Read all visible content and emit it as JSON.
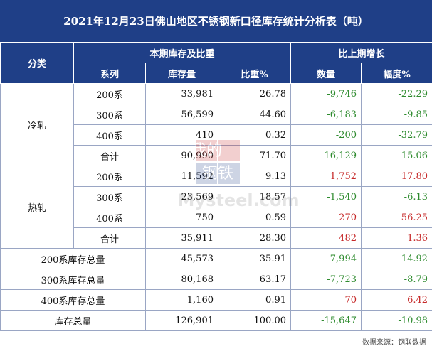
{
  "title": "2021年12月23日佛山地区不锈钢新口径库存统计分析表（吨）",
  "header": {
    "category": "分类",
    "current_group": "本期库存及比重",
    "change_group": "比上期增长",
    "series": "系列",
    "inventory": "库存量",
    "ratio": "比重%",
    "quantity": "数量",
    "amplitude": "幅度%"
  },
  "groups": {
    "cold": "冷轧",
    "hot": "热轧"
  },
  "rows": [
    {
      "series": "200系",
      "inventory": "33,981",
      "ratio": "26.78",
      "quantity": "-9,746",
      "amplitude": "-22.29"
    },
    {
      "series": "300系",
      "inventory": "56,599",
      "ratio": "44.60",
      "quantity": "-6,183",
      "amplitude": "-9.85"
    },
    {
      "series": "400系",
      "inventory": "410",
      "ratio": "0.32",
      "quantity": "-200",
      "amplitude": "-32.79"
    },
    {
      "series": "合计",
      "inventory": "90,990",
      "ratio": "71.70",
      "quantity": "-16,129",
      "amplitude": "-15.06"
    },
    {
      "series": "200系",
      "inventory": "11,592",
      "ratio": "9.13",
      "quantity": "1,752",
      "amplitude": "17.80"
    },
    {
      "series": "300系",
      "inventory": "23,569",
      "ratio": "18.57",
      "quantity": "-1,540",
      "amplitude": "-6.13"
    },
    {
      "series": "400系",
      "inventory": "750",
      "ratio": "0.59",
      "quantity": "270",
      "amplitude": "56.25"
    },
    {
      "series": "合计",
      "inventory": "35,911",
      "ratio": "28.30",
      "quantity": "482",
      "amplitude": "1.36"
    }
  ],
  "totals": [
    {
      "label": "200系库存总量",
      "inventory": "45,573",
      "ratio": "35.91",
      "quantity": "-7,994",
      "amplitude": "-14.92"
    },
    {
      "label": "300系库存总量",
      "inventory": "80,168",
      "ratio": "63.17",
      "quantity": "-7,723",
      "amplitude": "-8.79"
    },
    {
      "label": "400系库存总量",
      "inventory": "1,160",
      "ratio": "0.91",
      "quantity": "70",
      "amplitude": "6.42"
    },
    {
      "label": "库存总量",
      "inventory": "126,901",
      "ratio": "100.00",
      "quantity": "-15,647",
      "amplitude": "-10.98"
    }
  ],
  "footer": "数据来源：钢联数据",
  "watermark": {
    "line1": "我的",
    "line2": "钢铁",
    "brand": "Mysteel.com"
  },
  "colors": {
    "header_bg": "#1f3f87",
    "negative": "#2e8b2e",
    "positive": "#c62828"
  }
}
